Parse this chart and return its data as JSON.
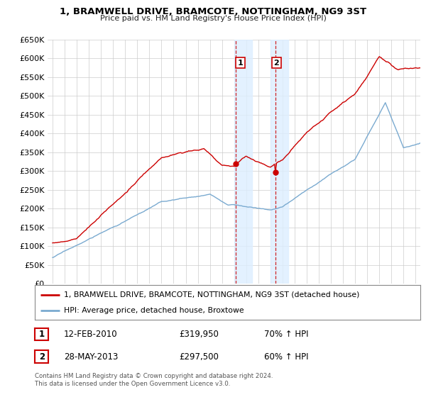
{
  "title": "1, BRAMWELL DRIVE, BRAMCOTE, NOTTINGHAM, NG9 3ST",
  "subtitle": "Price paid vs. HM Land Registry's House Price Index (HPI)",
  "ylim": [
    0,
    650000
  ],
  "yticks": [
    0,
    50000,
    100000,
    150000,
    200000,
    250000,
    300000,
    350000,
    400000,
    450000,
    500000,
    550000,
    600000,
    650000
  ],
  "sale1_t": 2010.12,
  "sale1_price": 319950,
  "sale1_label": "1",
  "sale2_t": 2013.41,
  "sale2_price": 297500,
  "sale2_label": "2",
  "legend_house": "1, BRAMWELL DRIVE, BRAMCOTE, NOTTINGHAM, NG9 3ST (detached house)",
  "legend_hpi": "HPI: Average price, detached house, Broxtowe",
  "ann1_date": "12-FEB-2010",
  "ann1_price": "£319,950",
  "ann1_pct": "70% ↑ HPI",
  "ann2_date": "28-MAY-2013",
  "ann2_price": "£297,500",
  "ann2_pct": "60% ↑ HPI",
  "footer": "Contains HM Land Registry data © Crown copyright and database right 2024.\nThis data is licensed under the Open Government Licence v3.0.",
  "house_color": "#cc0000",
  "hpi_color": "#7aaad0",
  "bg_color": "#ffffff",
  "grid_color": "#cccccc",
  "highlight_color": "#ddeeff",
  "t_start": 1995.0,
  "t_end": 2025.5,
  "xlim_left": 1994.6,
  "xlim_right": 2025.4
}
